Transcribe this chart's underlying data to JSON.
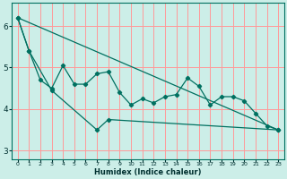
{
  "xlabel": "Humidex (Indice chaleur)",
  "bg_color": "#cceee8",
  "grid_color": "#ff9999",
  "line_color": "#007060",
  "xlim": [
    -0.5,
    23.5
  ],
  "ylim": [
    2.8,
    6.55
  ],
  "yticks": [
    3,
    4,
    5,
    6
  ],
  "xticks": [
    0,
    1,
    2,
    3,
    4,
    5,
    6,
    7,
    8,
    9,
    10,
    11,
    12,
    13,
    14,
    15,
    16,
    17,
    18,
    19,
    20,
    21,
    22,
    23
  ],
  "series1": [
    [
      0,
      6.2
    ],
    [
      1,
      5.4
    ],
    [
      2,
      4.7
    ],
    [
      3,
      4.5
    ],
    [
      4,
      5.05
    ],
    [
      5,
      4.6
    ],
    [
      6,
      4.6
    ],
    [
      7,
      4.85
    ],
    [
      8,
      4.9
    ],
    [
      9,
      4.4
    ],
    [
      10,
      4.1
    ],
    [
      11,
      4.25
    ],
    [
      12,
      4.15
    ],
    [
      13,
      4.3
    ],
    [
      14,
      4.35
    ],
    [
      15,
      4.75
    ],
    [
      16,
      4.55
    ],
    [
      17,
      4.1
    ],
    [
      18,
      4.3
    ],
    [
      19,
      4.3
    ],
    [
      20,
      4.2
    ],
    [
      21,
      3.9
    ],
    [
      22,
      3.6
    ],
    [
      23,
      3.5
    ]
  ],
  "series2": [
    [
      0,
      6.2
    ],
    [
      1,
      5.4
    ],
    [
      3,
      4.45
    ],
    [
      7,
      3.5
    ],
    [
      8,
      3.75
    ],
    [
      23,
      3.5
    ]
  ],
  "series3": [
    [
      0,
      6.2
    ],
    [
      23,
      3.5
    ]
  ]
}
